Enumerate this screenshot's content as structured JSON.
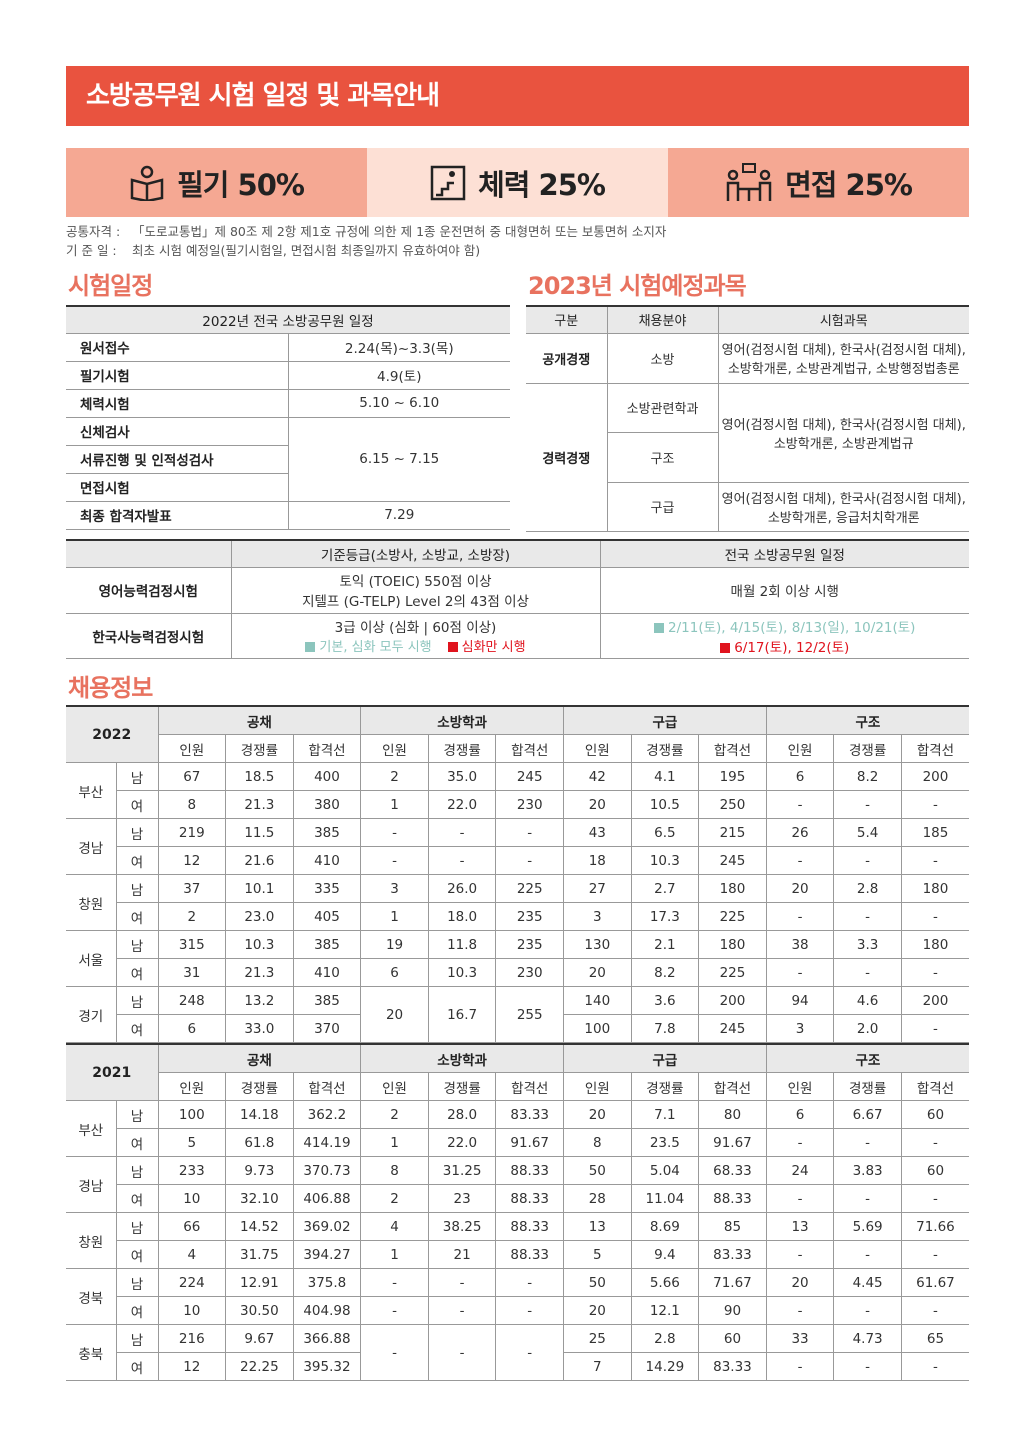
{
  "header": {
    "title": "소방공무원 시험 일정 및 과목안내",
    "weights": [
      "필기 50%",
      "체력 25%",
      "면접 25%"
    ]
  },
  "notes": [
    {
      "label": "공통자격 :",
      "text": "「도로교통법」제 80조 제 2항 제1호 규정에 의한 제 1종 운전면허 중 대형면허 또는 보통면허 소지자"
    },
    {
      "label": "기 준 일 :",
      "text": "최초 시험 예정일(필기시험일, 면접시험 최종일까지 유효하여야 함)"
    }
  ],
  "schedule": {
    "heading": "시험일정",
    "table_title": "2022년 전국 소방공무원 일정",
    "rows": [
      [
        "원서접수",
        "2.24(목)~3.3(목)"
      ],
      [
        "필기시험",
        "4.9(토)"
      ],
      [
        "체력시험",
        "5.10 ~ 6.10"
      ],
      [
        "신체검사",
        "6.15 ~ 7.15"
      ],
      [
        "서류진행 및 인적성검사",
        null
      ],
      [
        "면접시험",
        null
      ],
      [
        "최종 합격자발표",
        "7.29"
      ]
    ]
  },
  "subjects": {
    "heading": "2023년 시험예정과목",
    "columns": [
      "구분",
      "채용분야",
      "시험과목"
    ],
    "groups": [
      {
        "type": "공개경쟁",
        "fields": [
          {
            "name": "소방",
            "subjects": [
              "영어(검정시험 대체), 한국사(검정시험 대체),",
              "소방학개론, 소방관계법규, 소방행정법총론"
            ]
          }
        ]
      },
      {
        "type": "경력경쟁",
        "fields": [
          {
            "name": "소방관련학과",
            "subjects": [
              "영어(검정시험 대체), 한국사(검정시험 대체),",
              "소방학개론, 소방관계법규"
            ]
          },
          {
            "name": "구조",
            "subjects": null
          },
          {
            "name": "구급",
            "subjects": [
              "영어(검정시험 대체), 한국사(검정시험 대체),",
              "소방학개론, 응급처치학개론"
            ]
          }
        ]
      }
    ]
  },
  "certs": {
    "columns": [
      "기준등급(소방사, 소방교, 소방장)",
      "전국 소방공무원 일정"
    ],
    "rows": [
      {
        "name": "영어능력검정시험",
        "grade": [
          "토익 (TOEIC) 550점 이상",
          "지텔프 (G-TELP) Level 2의 43점 이상"
        ],
        "schedule": [
          "매월 2회 이상 시행"
        ]
      },
      {
        "name": "한국사능력검정시험",
        "grade": [
          "3급 이상 (심화 | 60점 이상)"
        ],
        "legend": [
          {
            "text": "기본, 심화 모두 시행",
            "color": "#8cc5bd"
          },
          {
            "text": "심화만 시행",
            "color": "#e0141e"
          }
        ],
        "schedule": [
          "2/11(토), 4/15(토), 8/13(일), 10/21(토)",
          "6/17(토), 12/2(토)"
        ]
      }
    ]
  },
  "recruitment": {
    "heading": "채용정보",
    "groups": [
      "공채",
      "소방학과",
      "구급",
      "구조"
    ],
    "columns": [
      "인원",
      "경쟁률",
      "합격선"
    ],
    "tables": [
      {
        "year": "2022",
        "regions": [
          {
            "name": "부산",
            "rows": [
              {
                "gender": "남",
                "cells": [
                  "67",
                  "18.5",
                  "400",
                  "2",
                  "35.0",
                  "245",
                  "42",
                  "4.1",
                  "195",
                  "6",
                  "8.2",
                  "200"
                ]
              },
              {
                "gender": "여",
                "cells": [
                  "8",
                  "21.3",
                  "380",
                  "1",
                  "22.0",
                  "230",
                  "20",
                  "10.5",
                  "250",
                  "-",
                  "-",
                  "-"
                ]
              }
            ]
          },
          {
            "name": "경남",
            "rows": [
              {
                "gender": "남",
                "cells": [
                  "219",
                  "11.5",
                  "385",
                  "-",
                  "-",
                  "-",
                  "43",
                  "6.5",
                  "215",
                  "26",
                  "5.4",
                  "185"
                ]
              },
              {
                "gender": "여",
                "cells": [
                  "12",
                  "21.6",
                  "410",
                  "-",
                  "-",
                  "-",
                  "18",
                  "10.3",
                  "245",
                  "-",
                  "-",
                  "-"
                ]
              }
            ]
          },
          {
            "name": "창원",
            "rows": [
              {
                "gender": "남",
                "cells": [
                  "37",
                  "10.1",
                  "335",
                  "3",
                  "26.0",
                  "225",
                  "27",
                  "2.7",
                  "180",
                  "20",
                  "2.8",
                  "180"
                ]
              },
              {
                "gender": "여",
                "cells": [
                  "2",
                  "23.0",
                  "405",
                  "1",
                  "18.0",
                  "235",
                  "3",
                  "17.3",
                  "225",
                  "-",
                  "-",
                  "-"
                ]
              }
            ]
          },
          {
            "name": "서울",
            "rows": [
              {
                "gender": "남",
                "cells": [
                  "315",
                  "10.3",
                  "385",
                  "19",
                  "11.8",
                  "235",
                  "130",
                  "2.1",
                  "180",
                  "38",
                  "3.3",
                  "180"
                ]
              },
              {
                "gender": "여",
                "cells": [
                  "31",
                  "21.3",
                  "410",
                  "6",
                  "10.3",
                  "230",
                  "20",
                  "8.2",
                  "225",
                  "-",
                  "-",
                  "-"
                ]
              }
            ]
          },
          {
            "name": "경기",
            "rows": [
              {
                "gender": "남",
                "cells": [
                  "248",
                  "13.2",
                  "385",
                  "20",
                  "16.7",
                  "255",
                  "140",
                  "3.6",
                  "200",
                  "94",
                  "4.6",
                  "200"
                ]
              },
              {
                "gender": "여",
                "cells": [
                  "6",
                  "33.0",
                  "370",
                  null,
                  null,
                  null,
                  "100",
                  "7.8",
                  "245",
                  "3",
                  "2.0",
                  "-"
                ]
              }
            ]
          }
        ]
      },
      {
        "year": "2021",
        "regions": [
          {
            "name": "부산",
            "rows": [
              {
                "gender": "남",
                "cells": [
                  "100",
                  "14.18",
                  "362.2",
                  "2",
                  "28.0",
                  "83.33",
                  "20",
                  "7.1",
                  "80",
                  "6",
                  "6.67",
                  "60"
                ]
              },
              {
                "gender": "여",
                "cells": [
                  "5",
                  "61.8",
                  "414.19",
                  "1",
                  "22.0",
                  "91.67",
                  "8",
                  "23.5",
                  "91.67",
                  "-",
                  "-",
                  "-"
                ]
              }
            ]
          },
          {
            "name": "경남",
            "rows": [
              {
                "gender": "남",
                "cells": [
                  "233",
                  "9.73",
                  "370.73",
                  "8",
                  "31.25",
                  "88.33",
                  "50",
                  "5.04",
                  "68.33",
                  "24",
                  "3.83",
                  "60"
                ]
              },
              {
                "gender": "여",
                "cells": [
                  "10",
                  "32.10",
                  "406.88",
                  "2",
                  "23",
                  "88.33",
                  "28",
                  "11.04",
                  "88.33",
                  "-",
                  "-",
                  "-"
                ]
              }
            ]
          },
          {
            "name": "창원",
            "rows": [
              {
                "gender": "남",
                "cells": [
                  "66",
                  "14.52",
                  "369.02",
                  "4",
                  "38.25",
                  "88.33",
                  "13",
                  "8.69",
                  "85",
                  "13",
                  "5.69",
                  "71.66"
                ]
              },
              {
                "gender": "여",
                "cells": [
                  "4",
                  "31.75",
                  "394.27",
                  "1",
                  "21",
                  "88.33",
                  "5",
                  "9.4",
                  "83.33",
                  "-",
                  "-",
                  "-"
                ]
              }
            ]
          },
          {
            "name": "경북",
            "rows": [
              {
                "gender": "남",
                "cells": [
                  "224",
                  "12.91",
                  "375.8",
                  "-",
                  "-",
                  "-",
                  "50",
                  "5.66",
                  "71.67",
                  "20",
                  "4.45",
                  "61.67"
                ]
              },
              {
                "gender": "여",
                "cells": [
                  "10",
                  "30.50",
                  "404.98",
                  "-",
                  "-",
                  "-",
                  "20",
                  "12.1",
                  "90",
                  "-",
                  "-",
                  "-"
                ]
              }
            ]
          },
          {
            "name": "충북",
            "rows": [
              {
                "gender": "남",
                "cells": [
                  "216",
                  "9.67",
                  "366.88",
                  "-",
                  "-",
                  "-",
                  "25",
                  "2.8",
                  "60",
                  "33",
                  "4.73",
                  "65"
                ]
              },
              {
                "gender": "여",
                "cells": [
                  "12",
                  "22.25",
                  "395.32",
                  null,
                  null,
                  null,
                  "7",
                  "14.29",
                  "83.33",
                  "-",
                  "-",
                  "-"
                ]
              }
            ]
          }
        ]
      }
    ]
  }
}
